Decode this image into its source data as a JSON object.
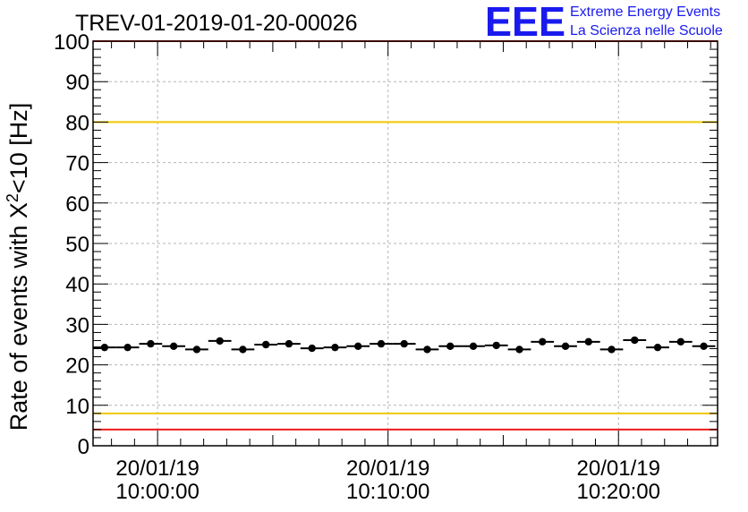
{
  "logo": {
    "text": "EEE",
    "line1": "Extreme Energy Events",
    "line2": "La Scienza nelle Scuole",
    "color": "#1a1aee"
  },
  "chart_data": {
    "type": "scatter",
    "title": "TREV-01-2019-01-20-00026",
    "ylabel_main": "Rate of events with X",
    "ylabel_sup": "2",
    "ylabel_tail": "<10 [Hz]",
    "ylim": [
      0,
      100
    ],
    "y_ticks": [
      "0",
      "10",
      "20",
      "30",
      "40",
      "50",
      "60",
      "70",
      "80",
      "90",
      "100"
    ],
    "xlim_minutes": [
      -2.8,
      24.3
    ],
    "x_ticks": [
      {
        "date": "20/01/19",
        "time": "10:00:00",
        "minute": 0
      },
      {
        "date": "20/01/19",
        "time": "10:10:00",
        "minute": 10
      },
      {
        "date": "20/01/19",
        "time": "10:20:00",
        "minute": 20
      }
    ],
    "bin_width_minutes": 1,
    "series": [
      {
        "name": "rate",
        "color": "#000000",
        "x_minutes": [
          -2.3,
          -1.3,
          -0.3,
          0.7,
          1.7,
          2.7,
          3.7,
          4.7,
          5.7,
          6.7,
          7.7,
          8.7,
          9.7,
          10.7,
          11.7,
          12.7,
          13.7,
          14.7,
          15.7,
          16.7,
          17.7,
          18.7,
          19.7,
          20.7,
          21.7,
          22.7,
          23.7
        ],
        "values": [
          24.3,
          24.3,
          25.2,
          24.6,
          23.8,
          25.9,
          23.8,
          25.0,
          25.2,
          24.1,
          24.3,
          24.6,
          25.2,
          25.2,
          23.8,
          24.6,
          24.6,
          24.8,
          23.8,
          25.7,
          24.6,
          25.7,
          23.8,
          26.1,
          24.3,
          25.7,
          24.6
        ]
      }
    ],
    "reference_lines": [
      {
        "name": "red-upper",
        "value": 100,
        "color": "#ee1c1c"
      },
      {
        "name": "yellow-upper",
        "value": 80,
        "color": "#f0c800"
      },
      {
        "name": "yellow-lower",
        "value": 8,
        "color": "#f0c800"
      },
      {
        "name": "red-lower",
        "value": 4,
        "color": "#ee1c1c"
      }
    ],
    "grid": true
  }
}
